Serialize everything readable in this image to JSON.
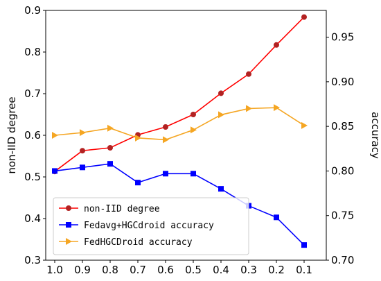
{
  "chart_data": {
    "type": "line",
    "x_tick_labels": [
      "1.0",
      "0.9",
      "0.8",
      "0.7",
      "0.6",
      "0.5",
      "0.4",
      "0.3",
      "0.2",
      "0.1"
    ],
    "ylabel_left": "non-IID degree",
    "ylabel_right": "accuracy",
    "ylim_left": [
      0.3,
      0.9
    ],
    "yticks_left": [
      "0.3",
      "0.4",
      "0.5",
      "0.6",
      "0.7",
      "0.8",
      "0.9"
    ],
    "ylim_right": [
      0.7,
      0.98
    ],
    "yticks_right": [
      "0.70",
      "0.75",
      "0.80",
      "0.85",
      "0.90",
      "0.95"
    ],
    "legend_position": "lower-left",
    "grid": false,
    "series": [
      {
        "name": "non-IID degree",
        "axis": "left",
        "color": "#ff0000",
        "marker_color": "#b22222",
        "marker": "circle",
        "values": [
          0.513,
          0.563,
          0.57,
          0.601,
          0.62,
          0.65,
          0.701,
          0.747,
          0.817,
          0.884
        ]
      },
      {
        "name": "Fedavg+HGCdroid accuracy",
        "axis": "right",
        "color": "#0000ff",
        "marker": "square",
        "values": [
          0.8,
          0.804,
          0.808,
          0.787,
          0.797,
          0.797,
          0.78,
          0.761,
          0.748,
          0.717
        ]
      },
      {
        "name": "FedHGCDroid accuracy",
        "axis": "right",
        "color": "#f5a623",
        "marker": "triangle-right",
        "values": [
          0.84,
          0.843,
          0.848,
          0.837,
          0.835,
          0.846,
          0.863,
          0.87,
          0.871,
          0.851
        ]
      }
    ]
  }
}
